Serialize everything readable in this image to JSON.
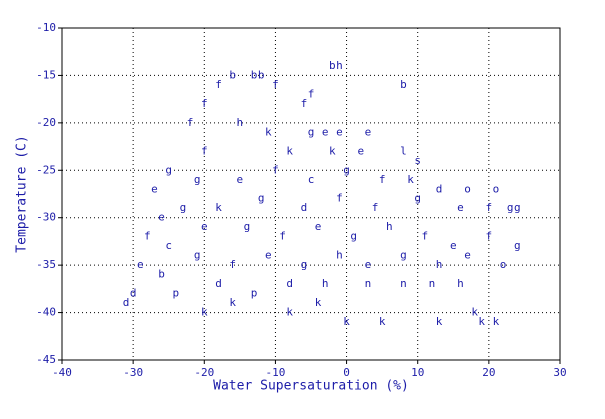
{
  "chart_data": {
    "type": "scatter",
    "xlabel": "Water Supersaturation (%)",
    "ylabel": "Temperature (C)",
    "xlim": [
      -40,
      30
    ],
    "ylim": [
      -45,
      -10
    ],
    "xticks": [
      -40,
      -30,
      -20,
      -10,
      0,
      10,
      20,
      30
    ],
    "yticks": [
      -45,
      -40,
      -35,
      -30,
      -25,
      -20,
      -15,
      -10
    ],
    "grid": true,
    "color": "#1c1ca8",
    "x": [
      -16,
      -13,
      -12,
      -2,
      -1,
      8,
      -18,
      -10,
      -5,
      -6,
      -20,
      -22,
      -15,
      -11,
      -5,
      -3,
      -1,
      3,
      -25,
      -20,
      -8,
      -2,
      2,
      8,
      10,
      -27,
      -21,
      -15,
      -10,
      -5,
      0,
      5,
      9,
      13,
      17,
      21,
      -26,
      -23,
      -18,
      -12,
      -6,
      -1,
      4,
      10,
      16,
      20,
      23,
      24,
      -28,
      -25,
      -20,
      -14,
      -9,
      -4,
      1,
      6,
      11,
      15,
      20,
      24,
      -29,
      -26,
      -21,
      -16,
      -11,
      -6,
      -1,
      3,
      8,
      13,
      17,
      22,
      -30,
      -31,
      -24,
      -18,
      -13,
      -8,
      -3,
      3,
      8,
      12,
      16,
      -20,
      -16,
      -8,
      -4,
      0,
      5,
      13,
      18,
      19,
      21
    ],
    "y": [
      -15,
      -15,
      -15,
      -14,
      -14,
      -16,
      -16,
      -16,
      -17,
      -18,
      -18,
      -20,
      -20,
      -21,
      -21,
      -21,
      -21,
      -21,
      -25,
      -23,
      -23,
      -23,
      -23,
      -23,
      -24,
      -27,
      -26,
      -26,
      -25,
      -26,
      -25,
      -26,
      -26,
      -27,
      -27,
      -27,
      -30,
      -29,
      -29,
      -28,
      -29,
      -28,
      -29,
      -28,
      -29,
      -29,
      -29,
      -29,
      -32,
      -33,
      -31,
      -31,
      -32,
      -31,
      -32,
      -31,
      -32,
      -33,
      -32,
      -33,
      -35,
      -36,
      -34,
      -35,
      -34,
      -35,
      -34,
      -35,
      -34,
      -35,
      -34,
      -35,
      -38,
      -39,
      -38,
      -37,
      -38,
      -37,
      -37,
      -37,
      -37,
      -37,
      -37,
      -40,
      -39,
      -40,
      -39,
      -41,
      -41,
      -41,
      -40,
      -41,
      -41
    ],
    "markers": [
      "b",
      "b",
      "b",
      "b",
      "h",
      "b",
      "f",
      "f",
      "f",
      "f",
      "f",
      "f",
      "h",
      "k",
      "g",
      "e",
      "e",
      "e",
      "g",
      "f",
      "k",
      "k",
      "e",
      "l",
      "s",
      "e",
      "g",
      "e",
      "f",
      "c",
      "g",
      "f",
      "k",
      "d",
      "o",
      "o",
      "e",
      "g",
      "k",
      "g",
      "d",
      "f",
      "f",
      "g",
      "e",
      "f",
      "g",
      "g",
      "f",
      "c",
      "e",
      "g",
      "f",
      "e",
      "g",
      "h",
      "f",
      "e",
      "f",
      "g",
      "e",
      "b",
      "g",
      "f",
      "e",
      "g",
      "h",
      "e",
      "g",
      "h",
      "e",
      "o",
      "d",
      "d",
      "p",
      "d",
      "p",
      "d",
      "h",
      "n",
      "n",
      "n",
      "h",
      "k",
      "k",
      "k",
      "k",
      "k",
      "k",
      "k",
      "k",
      "k",
      "k"
    ]
  }
}
